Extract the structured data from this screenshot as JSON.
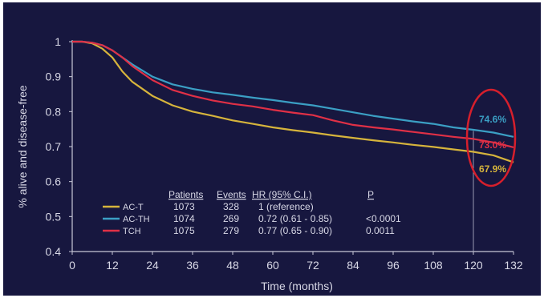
{
  "chart_data": {
    "type": "line",
    "xlabel": "Time (months)",
    "ylabel": "% alive and disease-free",
    "xlim": [
      0,
      132
    ],
    "ylim": [
      0.4,
      1.0
    ],
    "x_ticks": [
      0,
      12,
      24,
      36,
      48,
      60,
      72,
      84,
      96,
      108,
      120,
      132
    ],
    "y_ticks": [
      0.4,
      0.5,
      0.6,
      0.7,
      0.8,
      0.9,
      1
    ],
    "grid": false,
    "reference_line_x": 120,
    "x": [
      0,
      3,
      6,
      9,
      12,
      15,
      18,
      24,
      30,
      36,
      42,
      48,
      54,
      60,
      66,
      72,
      78,
      84,
      90,
      96,
      102,
      108,
      114,
      120,
      126,
      132
    ],
    "series": [
      {
        "name": "AC-T",
        "color": "#d6b43c",
        "values": [
          1.0,
          1.0,
          0.995,
          0.98,
          0.955,
          0.915,
          0.885,
          0.845,
          0.818,
          0.8,
          0.788,
          0.775,
          0.765,
          0.755,
          0.747,
          0.74,
          0.732,
          0.725,
          0.718,
          0.712,
          0.705,
          0.699,
          0.692,
          0.685,
          0.675,
          0.655
        ]
      },
      {
        "name": "AC-TH",
        "color": "#3b9fc4",
        "values": [
          1.0,
          1.0,
          0.997,
          0.99,
          0.975,
          0.955,
          0.935,
          0.9,
          0.878,
          0.865,
          0.855,
          0.848,
          0.84,
          0.833,
          0.825,
          0.818,
          0.808,
          0.798,
          0.788,
          0.78,
          0.772,
          0.765,
          0.755,
          0.748,
          0.74,
          0.728
        ]
      },
      {
        "name": "TCH",
        "color": "#e03046",
        "values": [
          1.0,
          1.0,
          0.997,
          0.99,
          0.975,
          0.955,
          0.93,
          0.89,
          0.862,
          0.845,
          0.832,
          0.822,
          0.815,
          0.805,
          0.797,
          0.79,
          0.775,
          0.762,
          0.755,
          0.749,
          0.742,
          0.735,
          0.728,
          0.722,
          0.712,
          0.698
        ]
      }
    ],
    "end_labels": [
      {
        "text": "74.6%",
        "color": "#3b9fc4",
        "y": 0.746
      },
      {
        "text": "73.0%",
        "color": "#e03046",
        "y": 0.73
      },
      {
        "text": "67.9%",
        "color": "#d6b43c",
        "y": 0.679
      }
    ],
    "highlight_color": "#d61f2c",
    "table": {
      "headers": [
        "Patients",
        "Events",
        "HR (95% C.I.)",
        "P"
      ],
      "rows": [
        {
          "name": "AC-T",
          "color": "#d6b43c",
          "patients": "1073",
          "events": "328",
          "hr": "1 (reference)",
          "p": ""
        },
        {
          "name": "AC-TH",
          "color": "#3b9fc4",
          "patients": "1074",
          "events": "269",
          "hr": "0.72 (0.61 - 0.85)",
          "p": "<0.0001"
        },
        {
          "name": "TCH",
          "color": "#e03046",
          "patients": "1075",
          "events": "279",
          "hr": "0.77 (0.65 - 0.90)",
          "p": "0.0011"
        }
      ]
    },
    "colors": {
      "background": "#17173f",
      "axis": "#c8c8d8",
      "text": "#d8d8e6"
    }
  }
}
